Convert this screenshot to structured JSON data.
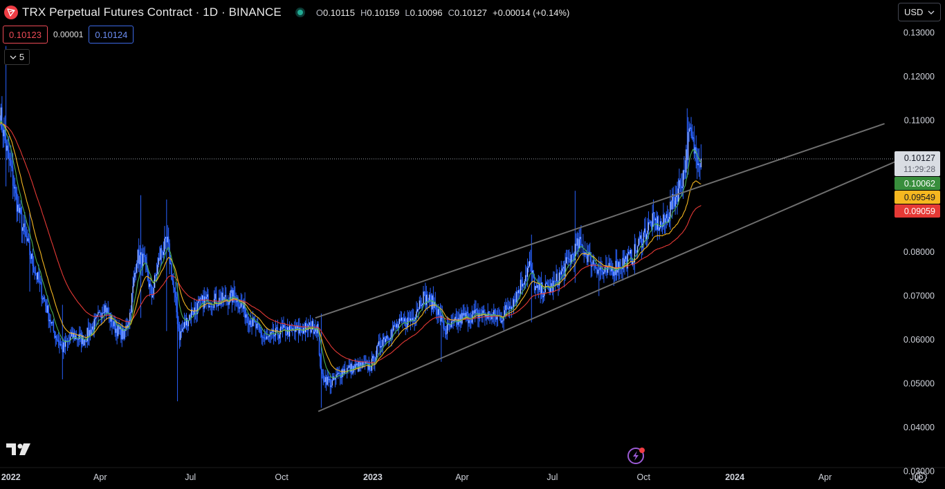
{
  "header": {
    "title": "TRX Perpetual Futures Contract · 1D · BINANCE",
    "ohlc": {
      "o_label": "O",
      "o": "0.10115",
      "h_label": "H",
      "h": "0.10159",
      "l_label": "L",
      "l": "0.10096",
      "c_label": "C",
      "c": "0.10127",
      "change": "+0.00014 (+0.14%)"
    }
  },
  "quote": {
    "sell": "0.10123",
    "spread": "0.00001",
    "buy": "0.10124"
  },
  "indicators_toggle": {
    "count": "5"
  },
  "currency": {
    "label": "USD"
  },
  "colors": {
    "background": "#000000",
    "candle": "#2962ff",
    "ema_fast": "#4caf50",
    "ema_mid": "#f5b720",
    "ema_slow": "#e53935",
    "trendline": "#6e6e6e",
    "last_price_box": "#d9dde3",
    "axis_text": "#d1d4dc"
  },
  "icons": {
    "brand": "tron-logo-icon",
    "status": "market-open-dot-icon",
    "collapse": "chevron-down-icon",
    "currency": "chevron-down-icon",
    "tradingview": "tradingview-logo-icon",
    "bolt": "lightning-icon",
    "settings": "gear-icon"
  },
  "chart_data": {
    "type": "candlestick",
    "x_range": [
      "2021-12-21",
      "2024-07-31"
    ],
    "ylim": [
      0.026,
      0.1375
    ],
    "grid": false,
    "y_ticks": [
      {
        "value": 0.13,
        "label": "0.13000"
      },
      {
        "value": 0.12,
        "label": "0.12000"
      },
      {
        "value": 0.11,
        "label": "0.11000"
      },
      {
        "value": 0.08,
        "label": "0.08000"
      },
      {
        "value": 0.07,
        "label": "0.07000"
      },
      {
        "value": 0.06,
        "label": "0.06000"
      },
      {
        "value": 0.05,
        "label": "0.05000"
      },
      {
        "value": 0.04,
        "label": "0.04000"
      },
      {
        "value": 0.03,
        "label": "0.03000"
      }
    ],
    "x_ticks": [
      {
        "date": "2022-01-01",
        "label": "2022",
        "bold": true
      },
      {
        "date": "2022-04-01",
        "label": "Apr",
        "bold": false
      },
      {
        "date": "2022-07-01",
        "label": "Jul",
        "bold": false
      },
      {
        "date": "2022-10-01",
        "label": "Oct",
        "bold": false
      },
      {
        "date": "2023-01-01",
        "label": "2023",
        "bold": true
      },
      {
        "date": "2023-04-01",
        "label": "Apr",
        "bold": false
      },
      {
        "date": "2023-07-01",
        "label": "Jul",
        "bold": false
      },
      {
        "date": "2023-10-01",
        "label": "Oct",
        "bold": false
      },
      {
        "date": "2024-01-01",
        "label": "2024",
        "bold": true
      },
      {
        "date": "2024-04-01",
        "label": "Apr",
        "bold": false
      },
      {
        "date": "2024-07-01",
        "label": "Jul",
        "bold": false
      }
    ],
    "price_path": [
      [
        "2021-12-21",
        0.112
      ],
      [
        "2021-12-27",
        0.104
      ],
      [
        "2022-01-01",
        0.099
      ],
      [
        "2022-01-08",
        0.09
      ],
      [
        "2022-01-16",
        0.083
      ],
      [
        "2022-01-25",
        0.076
      ],
      [
        "2022-02-05",
        0.068
      ],
      [
        "2022-02-13",
        0.062
      ],
      [
        "2022-02-22",
        0.058
      ],
      [
        "2022-03-05",
        0.061
      ],
      [
        "2022-03-15",
        0.06
      ],
      [
        "2022-03-28",
        0.064
      ],
      [
        "2022-04-05",
        0.068
      ],
      [
        "2022-04-15",
        0.063
      ],
      [
        "2022-04-25",
        0.061
      ],
      [
        "2022-05-01",
        0.066
      ],
      [
        "2022-05-08",
        0.079
      ],
      [
        "2022-05-15",
        0.078
      ],
      [
        "2022-05-23",
        0.07
      ],
      [
        "2022-06-01",
        0.08
      ],
      [
        "2022-06-08",
        0.082
      ],
      [
        "2022-06-15",
        0.07
      ],
      [
        "2022-06-20",
        0.061
      ],
      [
        "2022-07-01",
        0.066
      ],
      [
        "2022-07-15",
        0.069
      ],
      [
        "2022-08-01",
        0.069
      ],
      [
        "2022-08-15",
        0.07
      ],
      [
        "2022-09-01",
        0.064
      ],
      [
        "2022-09-15",
        0.06
      ],
      [
        "2022-10-01",
        0.062
      ],
      [
        "2022-10-15",
        0.062
      ],
      [
        "2022-11-01",
        0.063
      ],
      [
        "2022-11-06",
        0.063
      ],
      [
        "2022-11-10",
        0.052
      ],
      [
        "2022-11-20",
        0.05
      ],
      [
        "2022-12-01",
        0.053
      ],
      [
        "2022-12-20",
        0.054
      ],
      [
        "2022-12-30",
        0.054
      ],
      [
        "2023-01-10",
        0.06
      ],
      [
        "2023-01-25",
        0.063
      ],
      [
        "2023-02-10",
        0.065
      ],
      [
        "2023-02-20",
        0.07
      ],
      [
        "2023-03-05",
        0.068
      ],
      [
        "2023-03-15",
        0.062
      ],
      [
        "2023-04-01",
        0.065
      ],
      [
        "2023-04-20",
        0.066
      ],
      [
        "2023-05-10",
        0.065
      ],
      [
        "2023-05-25",
        0.07
      ],
      [
        "2023-06-08",
        0.077
      ],
      [
        "2023-06-15",
        0.071
      ],
      [
        "2023-07-01",
        0.072
      ],
      [
        "2023-07-15",
        0.077
      ],
      [
        "2023-07-28",
        0.082
      ],
      [
        "2023-08-10",
        0.078
      ],
      [
        "2023-08-22",
        0.075
      ],
      [
        "2023-09-05",
        0.077
      ],
      [
        "2023-09-20",
        0.079
      ],
      [
        "2023-10-01",
        0.084
      ],
      [
        "2023-10-10",
        0.087
      ],
      [
        "2023-10-20",
        0.086
      ],
      [
        "2023-10-30",
        0.091
      ],
      [
        "2023-11-08",
        0.096
      ],
      [
        "2023-11-12",
        0.1
      ],
      [
        "2023-11-16",
        0.107
      ],
      [
        "2023-11-22",
        0.103
      ],
      [
        "2023-11-28",
        0.1013
      ]
    ],
    "spikes": [
      {
        "date": "2021-12-27",
        "high": 0.127,
        "low": 0.095
      },
      {
        "date": "2022-01-20",
        "high": 0.089,
        "low": 0.071
      },
      {
        "date": "2022-02-22",
        "high": 0.068,
        "low": 0.051
      },
      {
        "date": "2022-05-12",
        "high": 0.093,
        "low": 0.065
      },
      {
        "date": "2022-06-07",
        "high": 0.092,
        "low": 0.062
      },
      {
        "date": "2022-06-18",
        "high": 0.073,
        "low": 0.046
      },
      {
        "date": "2022-11-10",
        "high": 0.066,
        "low": 0.0445
      },
      {
        "date": "2023-03-11",
        "high": 0.068,
        "low": 0.055
      },
      {
        "date": "2023-06-10",
        "high": 0.084,
        "low": 0.064
      },
      {
        "date": "2023-07-24",
        "high": 0.094,
        "low": 0.073
      },
      {
        "date": "2023-08-17",
        "high": 0.079,
        "low": 0.07
      },
      {
        "date": "2023-11-14",
        "high": 0.1128,
        "low": 0.099
      }
    ],
    "trendlines": [
      {
        "from": [
          "2022-11-04",
          0.065
        ],
        "to": [
          "2024-05-31",
          0.1093
        ]
      },
      {
        "from": [
          "2022-11-07",
          0.0437
        ],
        "to": [
          "2024-07-01",
          0.1026
        ]
      }
    ],
    "last_price_line": 0.10127,
    "price_labels": [
      {
        "label": "0.10127",
        "sub": "11:29:28",
        "value": 0.10127,
        "role": "last"
      },
      {
        "label": "0.10062",
        "value": 0.10062,
        "role": "ema_fast"
      },
      {
        "label": "0.09549",
        "value": 0.09549,
        "role": "ema_mid"
      },
      {
        "label": "0.09059",
        "value": 0.09059,
        "role": "ema_slow"
      }
    ],
    "ema_end_values": {
      "fast": 0.10062,
      "mid": 0.09549,
      "slow": 0.09059
    }
  }
}
